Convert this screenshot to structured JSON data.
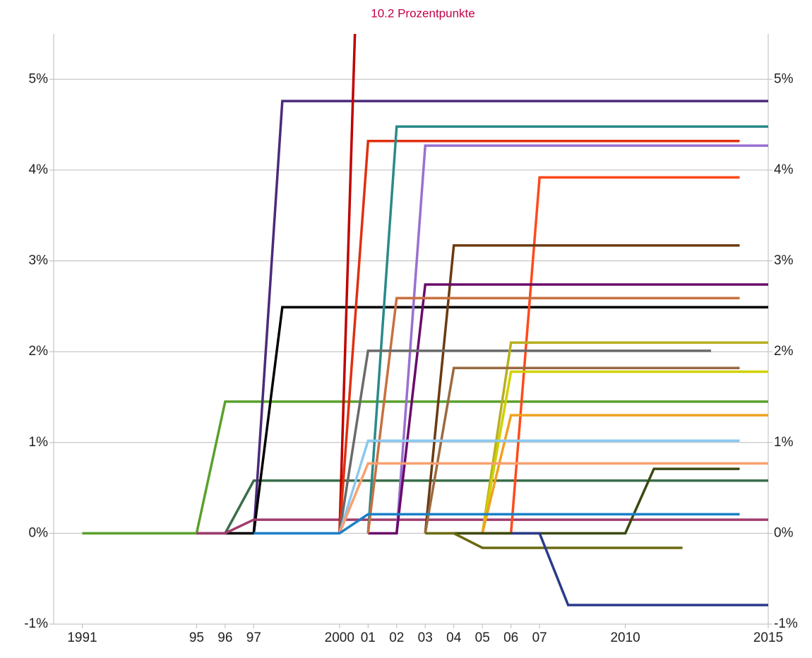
{
  "chart_data": {
    "type": "line",
    "annotation": "10.2 Prozentpunkte",
    "x": [
      1991,
      1992,
      1993,
      1994,
      1995,
      1996,
      1997,
      1998,
      1999,
      2000,
      2001,
      2002,
      2003,
      2004,
      2005,
      2006,
      2007,
      2008,
      2009,
      2010,
      2011,
      2012,
      2013,
      2014,
      2015
    ],
    "xlim": [
      1990,
      2015
    ],
    "xticks": [
      1991,
      {
        "value": 1995,
        "label": "95"
      },
      {
        "value": 1996,
        "label": "96"
      },
      {
        "value": 1997,
        "label": "97"
      },
      2000,
      {
        "value": 2001,
        "label": "01"
      },
      {
        "value": 2002,
        "label": "02"
      },
      {
        "value": 2003,
        "label": "03"
      },
      {
        "value": 2004,
        "label": "04"
      },
      {
        "value": 2005,
        "label": "05"
      },
      {
        "value": 2006,
        "label": "06"
      },
      {
        "value": 2007,
        "label": "07"
      },
      2010,
      2015
    ],
    "ylim": [
      -1,
      5.5
    ],
    "yticks": [
      {
        "value": -1,
        "label": "-1%"
      },
      {
        "value": 0,
        "label": "0%"
      },
      {
        "value": 1,
        "label": "1%"
      },
      {
        "value": 2,
        "label": "2%"
      },
      {
        "value": 3,
        "label": "3%"
      },
      {
        "value": 4,
        "label": "4%"
      },
      {
        "value": 5,
        "label": "5%"
      }
    ],
    "grid": true,
    "series": [
      {
        "color": "#5aa02c",
        "values": [
          0,
          0,
          0,
          0,
          0,
          1.45,
          1.45,
          1.45,
          1.45,
          1.45,
          1.45,
          1.45,
          1.45,
          1.45,
          1.45,
          1.45,
          1.45,
          1.45,
          1.45,
          1.45,
          1.45,
          1.45,
          1.45,
          1.45,
          1.45
        ]
      },
      {
        "color": "#3a6e4a",
        "values": [
          null,
          null,
          null,
          null,
          0,
          0,
          0.58,
          0.58,
          0.58,
          0.58,
          0.58,
          0.58,
          0.58,
          0.58,
          0.58,
          0.58,
          0.58,
          0.58,
          0.58,
          0.58,
          0.58,
          0.58,
          0.58,
          0.58,
          0.58
        ]
      },
      {
        "color": "#4b2a7a",
        "values": [
          null,
          null,
          null,
          null,
          null,
          null,
          0,
          4.76,
          4.76,
          4.76,
          4.76,
          4.76,
          4.76,
          4.76,
          4.76,
          4.76,
          4.76,
          4.76,
          4.76,
          4.76,
          4.76,
          4.76,
          4.76,
          4.76,
          4.76
        ]
      },
      {
        "color": "#000000",
        "values": [
          null,
          null,
          null,
          null,
          null,
          0,
          0,
          2.49,
          2.49,
          2.49,
          2.49,
          2.49,
          2.49,
          2.49,
          2.49,
          2.49,
          2.49,
          2.49,
          2.49,
          2.49,
          2.49,
          2.49,
          2.49,
          2.49,
          2.49
        ]
      },
      {
        "color": "#a03c6e",
        "values": [
          null,
          null,
          null,
          null,
          0,
          0,
          0.15,
          0.15,
          0.15,
          0.15,
          0.15,
          0.15,
          0.15,
          0.15,
          0.15,
          0.15,
          0.15,
          0.15,
          0.15,
          0.15,
          0.15,
          0.15,
          0.15,
          0.15,
          0.15
        ]
      },
      {
        "color": "#c00000",
        "values": [
          null,
          null,
          null,
          null,
          null,
          null,
          null,
          null,
          null,
          0,
          10.2,
          null,
          null,
          null,
          null,
          null,
          null,
          null,
          null,
          null,
          null,
          null,
          null,
          null,
          null
        ]
      },
      {
        "color": "#e03010",
        "values": [
          null,
          null,
          null,
          null,
          null,
          null,
          null,
          null,
          null,
          0,
          4.32,
          4.32,
          4.32,
          4.32,
          4.32,
          4.32,
          4.32,
          4.32,
          4.32,
          4.32,
          4.32,
          4.32,
          4.32,
          4.32,
          null
        ]
      },
      {
        "color": "#2a8a8a",
        "values": [
          null,
          null,
          null,
          null,
          null,
          null,
          null,
          null,
          null,
          null,
          0,
          4.48,
          4.48,
          4.48,
          4.48,
          4.48,
          4.48,
          4.48,
          4.48,
          4.48,
          4.48,
          4.48,
          4.48,
          4.48,
          4.48
        ]
      },
      {
        "color": "#9a70d0",
        "values": [
          null,
          null,
          null,
          null,
          null,
          null,
          null,
          null,
          null,
          null,
          null,
          0,
          4.27,
          4.27,
          4.27,
          4.27,
          4.27,
          4.27,
          4.27,
          4.27,
          4.27,
          4.27,
          4.27,
          4.27,
          4.27
        ]
      },
      {
        "color": "#ff4a1a",
        "values": [
          null,
          null,
          null,
          null,
          null,
          null,
          null,
          null,
          null,
          null,
          null,
          null,
          null,
          null,
          0,
          0,
          3.92,
          3.92,
          3.92,
          3.92,
          3.92,
          3.92,
          3.92,
          3.92,
          null
        ]
      },
      {
        "color": "#6a3a10",
        "values": [
          null,
          null,
          null,
          null,
          null,
          null,
          null,
          null,
          null,
          null,
          null,
          null,
          0,
          3.17,
          3.17,
          3.17,
          3.17,
          3.17,
          3.17,
          3.17,
          3.17,
          3.17,
          3.17,
          3.17,
          null
        ]
      },
      {
        "color": "#6a0a6a",
        "values": [
          null,
          null,
          null,
          null,
          null,
          null,
          null,
          null,
          null,
          null,
          0,
          0,
          2.74,
          2.74,
          2.74,
          2.74,
          2.74,
          2.74,
          2.74,
          2.74,
          2.74,
          2.74,
          2.74,
          2.74,
          2.74
        ]
      },
      {
        "color": "#c87040",
        "values": [
          null,
          null,
          null,
          null,
          null,
          null,
          null,
          null,
          null,
          null,
          0,
          2.59,
          2.59,
          2.59,
          2.59,
          2.59,
          2.59,
          2.59,
          2.59,
          2.59,
          2.59,
          2.59,
          2.59,
          2.59,
          null
        ]
      },
      {
        "color": "#6a6a6a",
        "values": [
          null,
          null,
          null,
          null,
          null,
          null,
          null,
          null,
          null,
          0,
          2.01,
          2.01,
          2.01,
          2.01,
          2.01,
          2.01,
          2.01,
          2.01,
          2.01,
          2.01,
          2.01,
          2.01,
          2.01,
          null,
          null
        ]
      },
      {
        "color": "#b8b020",
        "values": [
          null,
          null,
          null,
          null,
          null,
          null,
          null,
          null,
          null,
          null,
          null,
          null,
          null,
          null,
          0,
          2.1,
          2.1,
          2.1,
          2.1,
          2.1,
          2.1,
          2.1,
          2.1,
          2.1,
          2.1
        ]
      },
      {
        "color": "#9a6a40",
        "values": [
          null,
          null,
          null,
          null,
          null,
          null,
          null,
          null,
          null,
          null,
          null,
          null,
          0,
          1.82,
          1.82,
          1.82,
          1.82,
          1.82,
          1.82,
          1.82,
          1.82,
          1.82,
          1.82,
          1.82,
          null
        ]
      },
      {
        "color": "#d0d000",
        "values": [
          null,
          null,
          null,
          null,
          null,
          null,
          null,
          null,
          null,
          null,
          null,
          null,
          null,
          null,
          0,
          1.78,
          1.78,
          1.78,
          1.78,
          1.78,
          1.78,
          1.78,
          1.78,
          1.78,
          1.78
        ]
      },
      {
        "color": "#f0a020",
        "values": [
          null,
          null,
          null,
          null,
          null,
          null,
          null,
          null,
          null,
          null,
          null,
          null,
          null,
          0,
          0,
          1.3,
          1.3,
          1.3,
          1.3,
          1.3,
          1.3,
          1.3,
          1.3,
          1.3,
          1.3
        ]
      },
      {
        "color": "#8ac8f0",
        "values": [
          null,
          null,
          null,
          null,
          null,
          null,
          null,
          null,
          null,
          0,
          1.02,
          1.02,
          1.02,
          1.02,
          1.02,
          1.02,
          1.02,
          1.02,
          1.02,
          1.02,
          1.02,
          1.02,
          1.02,
          1.02,
          null
        ]
      },
      {
        "color": "#f8a070",
        "values": [
          null,
          null,
          null,
          null,
          null,
          null,
          null,
          null,
          null,
          0,
          0.77,
          0.77,
          0.77,
          0.77,
          0.77,
          0.77,
          0.77,
          0.77,
          0.77,
          0.77,
          0.77,
          0.77,
          0.77,
          0.77,
          0.77
        ]
      },
      {
        "color": "#3a4a10",
        "values": [
          null,
          null,
          null,
          null,
          null,
          null,
          null,
          null,
          null,
          null,
          null,
          null,
          null,
          0,
          0,
          0,
          0,
          0,
          0,
          0,
          0.71,
          0.71,
          0.71,
          0.71,
          null
        ]
      },
      {
        "color": "#1a80c8",
        "values": [
          null,
          null,
          null,
          null,
          null,
          null,
          0,
          0,
          0,
          0,
          0.21,
          0.21,
          0.21,
          0.21,
          0.21,
          0.21,
          0.21,
          0.21,
          0.21,
          0.21,
          0.21,
          0.21,
          0.21,
          0.21,
          null
        ]
      },
      {
        "color": "#6a6a10",
        "values": [
          null,
          null,
          null,
          null,
          null,
          null,
          null,
          null,
          null,
          null,
          null,
          null,
          0,
          0,
          -0.16,
          -0.16,
          -0.16,
          -0.16,
          -0.16,
          -0.16,
          -0.16,
          -0.16,
          null,
          null,
          null
        ]
      },
      {
        "color": "#2a3a8a",
        "values": [
          null,
          null,
          null,
          null,
          null,
          null,
          null,
          null,
          null,
          null,
          null,
          null,
          null,
          null,
          null,
          0,
          0,
          -0.79,
          -0.79,
          -0.79,
          -0.79,
          -0.79,
          -0.79,
          -0.79,
          -0.79
        ]
      }
    ]
  }
}
